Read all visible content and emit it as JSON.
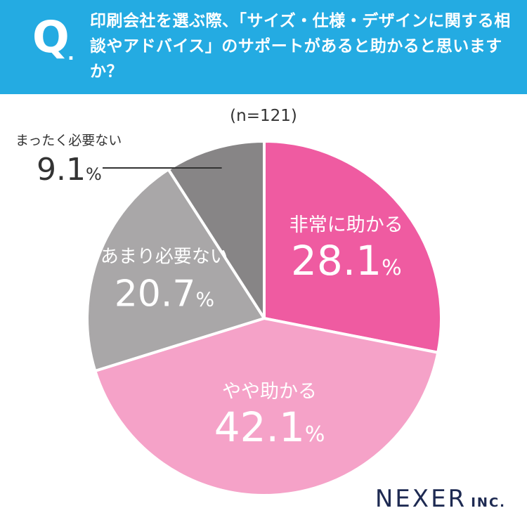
{
  "header": {
    "q_letter": "Q",
    "q_dot": ".",
    "question": "印刷会社を選ぶ際、「サイズ・仕様・デザインに関する相談やアドバイス」のサポートがあると助かると思いますか？",
    "bg_color": "#24abe2"
  },
  "sample": "(n=121)",
  "chart_data": {
    "type": "pie",
    "start": "12 o'clock",
    "direction": "clockwise",
    "slices": [
      {
        "label": "非常に助かる",
        "value": 28.1,
        "display": "28.1",
        "unit": "%",
        "color": "#ef5ba1"
      },
      {
        "label": "やや助かる",
        "value": 42.1,
        "display": "42.1",
        "unit": "%",
        "color": "#f5a2c8"
      },
      {
        "label": "あまり必要ない",
        "value": 20.7,
        "display": "20.7",
        "unit": "%",
        "color": "#a9a7a8"
      },
      {
        "label": "まったく必要ない",
        "value": 9.1,
        "display": "9.1",
        "unit": "%",
        "color": "#878586"
      }
    ]
  },
  "logo": {
    "name": "NEXER",
    "suffix": "INC."
  }
}
